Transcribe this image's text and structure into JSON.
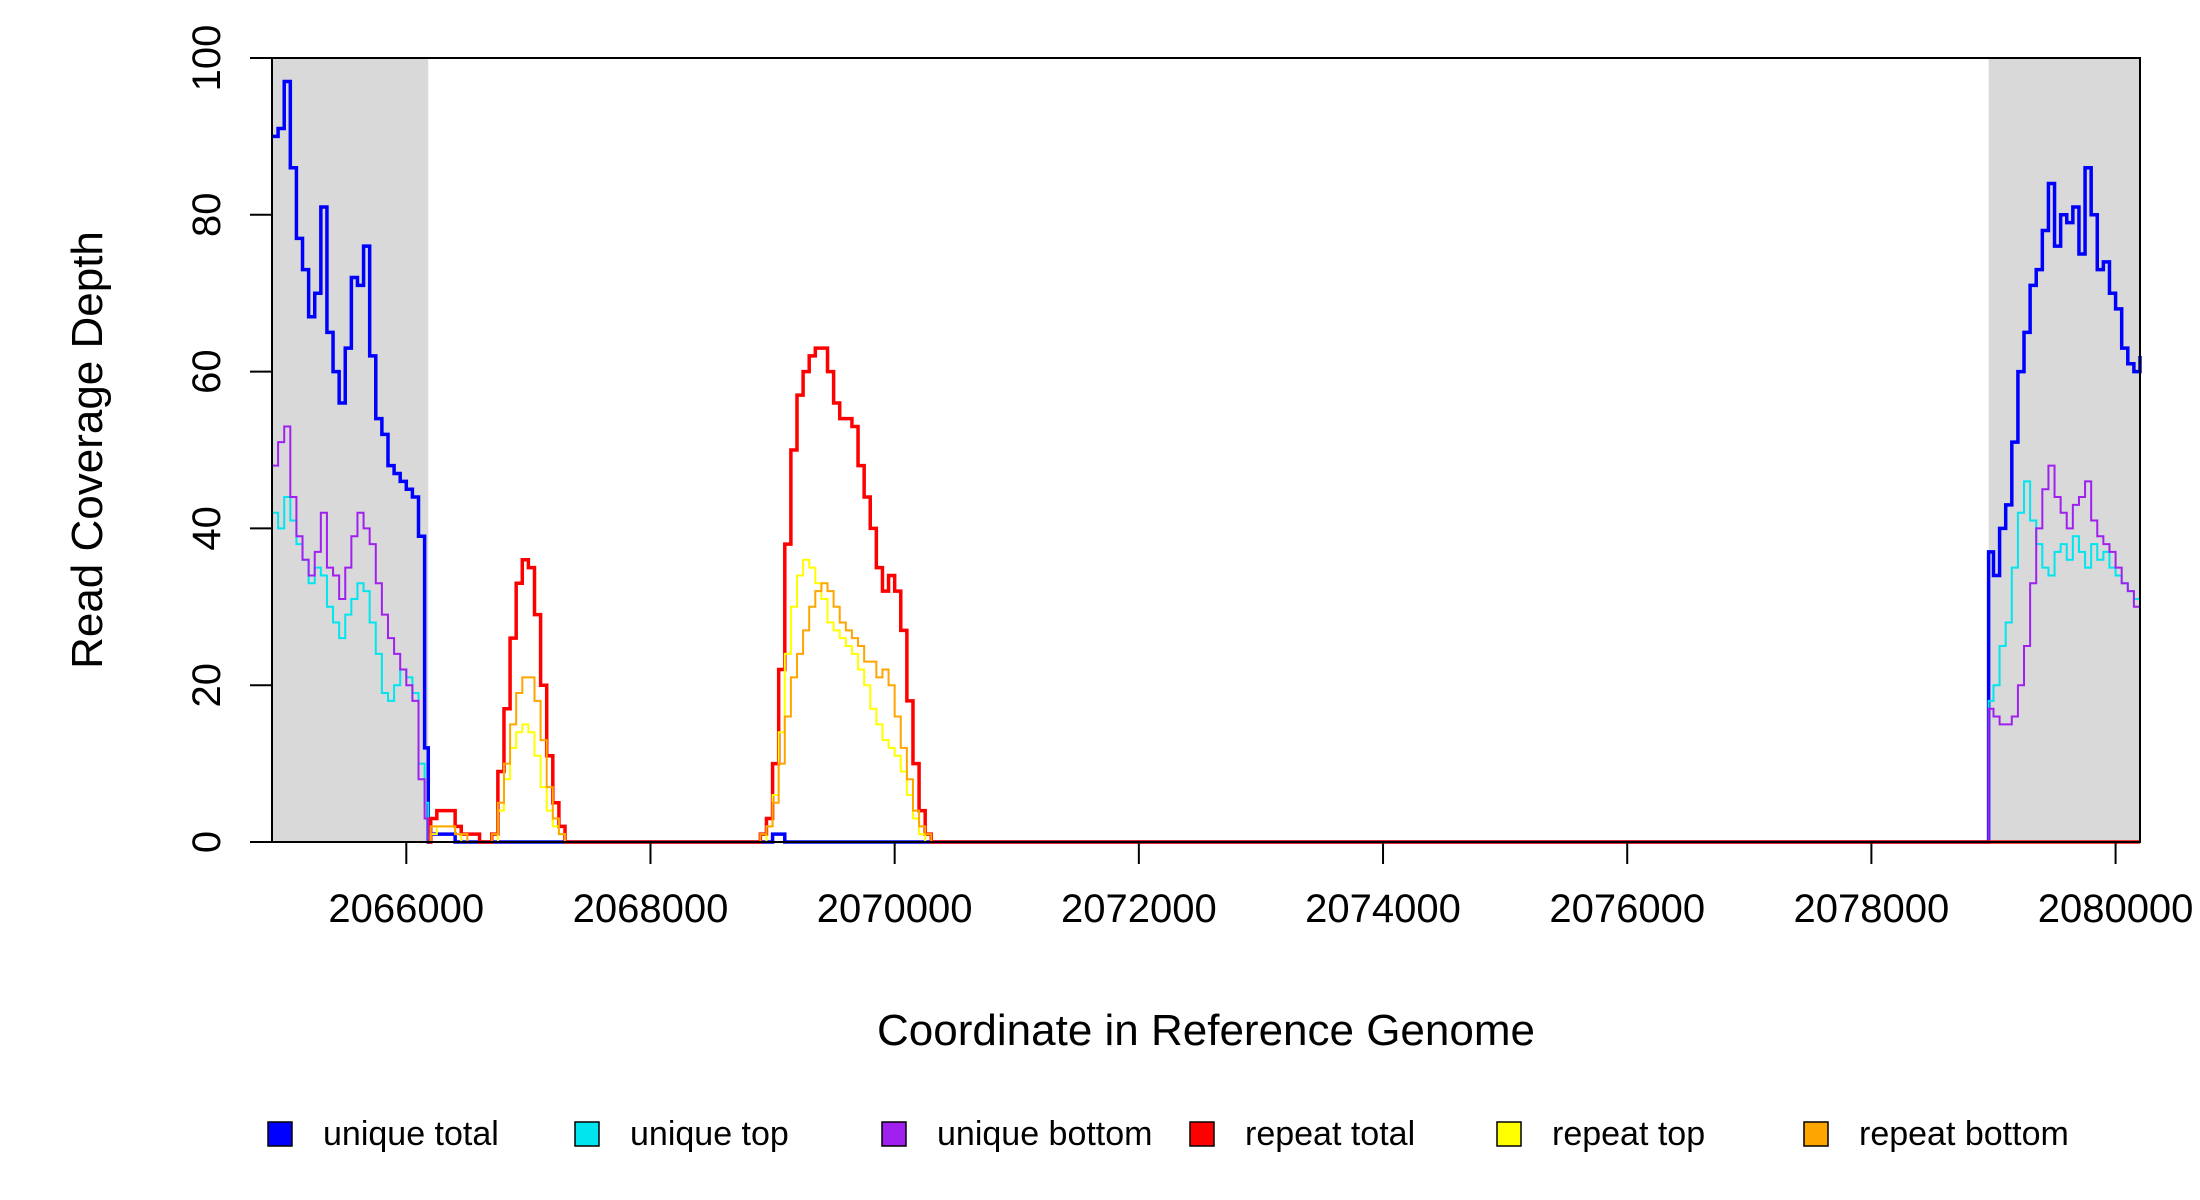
{
  "chart_data": {
    "type": "line",
    "xlabel": "Coordinate in Reference Genome",
    "ylabel": "Read Coverage Depth",
    "xlim": [
      2064900,
      2080200
    ],
    "ylim": [
      0,
      100
    ],
    "x_ticks": [
      2066000,
      2068000,
      2070000,
      2072000,
      2074000,
      2076000,
      2078000,
      2080000
    ],
    "x_tick_labels": [
      "2066000",
      "2068000",
      "2070000",
      "2072000",
      "2074000",
      "2076000",
      "2078000",
      "2080000"
    ],
    "y_ticks": [
      0,
      20,
      40,
      60,
      80,
      100
    ],
    "y_tick_labels": [
      "0",
      "20",
      "40",
      "60",
      "80",
      "100"
    ],
    "grid": false,
    "legend_placement": "bottom",
    "shaded_regions": [
      {
        "x0": 2064900,
        "x1": 2066180,
        "color": "#d9d9d9"
      },
      {
        "x0": 2078960,
        "x1": 2080200,
        "color": "#d9d9d9"
      }
    ],
    "series": [
      {
        "name": "unique total",
        "color": "#0000ff",
        "x": [
          2064900,
          2064950,
          2065000,
          2065050,
          2065100,
          2065150,
          2065200,
          2065250,
          2065300,
          2065350,
          2065400,
          2065450,
          2065500,
          2065550,
          2065600,
          2065650,
          2065700,
          2065750,
          2065800,
          2065850,
          2065900,
          2065950,
          2066000,
          2066050,
          2066100,
          2066150,
          2066180,
          2066200,
          2066300,
          2066400,
          2066500,
          2066600,
          2068900,
          2069000,
          2069100,
          2070000,
          2078900,
          2078960,
          2079000,
          2079050,
          2079100,
          2079150,
          2079200,
          2079250,
          2079300,
          2079350,
          2079400,
          2079450,
          2079500,
          2079550,
          2079600,
          2079650,
          2079700,
          2079750,
          2079800,
          2079850,
          2079900,
          2079950,
          2080000,
          2080050,
          2080100,
          2080150,
          2080200
        ],
        "y": [
          90,
          91,
          97,
          86,
          77,
          73,
          67,
          70,
          81,
          65,
          60,
          56,
          63,
          72,
          71,
          76,
          62,
          54,
          52,
          48,
          47,
          46,
          45,
          44,
          39,
          12,
          0,
          1,
          1,
          0,
          0,
          0,
          0,
          1,
          0,
          0,
          0,
          37,
          34,
          40,
          43,
          51,
          60,
          65,
          71,
          73,
          78,
          84,
          76,
          80,
          79,
          81,
          75,
          86,
          80,
          73,
          74,
          70,
          68,
          63,
          61,
          60,
          62
        ]
      },
      {
        "name": "unique top",
        "color": "#00e5ee",
        "x": [
          2064900,
          2064950,
          2065000,
          2065050,
          2065100,
          2065150,
          2065200,
          2065250,
          2065300,
          2065350,
          2065400,
          2065450,
          2065500,
          2065550,
          2065600,
          2065650,
          2065700,
          2065750,
          2065800,
          2065850,
          2065900,
          2065950,
          2066000,
          2066050,
          2066100,
          2066150,
          2066180,
          2066200,
          2078900,
          2078960,
          2079000,
          2079050,
          2079100,
          2079150,
          2079200,
          2079250,
          2079300,
          2079350,
          2079400,
          2079450,
          2079500,
          2079550,
          2079600,
          2079650,
          2079700,
          2079750,
          2079800,
          2079850,
          2079900,
          2079950,
          2080000,
          2080050,
          2080100,
          2080150,
          2080200
        ],
        "y": [
          42,
          40,
          44,
          41,
          38,
          36,
          33,
          35,
          34,
          30,
          28,
          26,
          29,
          31,
          33,
          32,
          28,
          24,
          19,
          18,
          20,
          22,
          21,
          19,
          10,
          5,
          0,
          0,
          0,
          18,
          20,
          25,
          28,
          35,
          42,
          46,
          41,
          38,
          35,
          34,
          37,
          38,
          36,
          39,
          37,
          35,
          38,
          36,
          37,
          35,
          34,
          33,
          32,
          31,
          30
        ]
      },
      {
        "name": "unique bottom",
        "color": "#a020f0",
        "x": [
          2064900,
          2064950,
          2065000,
          2065050,
          2065100,
          2065150,
          2065200,
          2065250,
          2065300,
          2065350,
          2065400,
          2065450,
          2065500,
          2065550,
          2065600,
          2065650,
          2065700,
          2065750,
          2065800,
          2065850,
          2065900,
          2065950,
          2066000,
          2066050,
          2066100,
          2066150,
          2066180,
          2066200,
          2078900,
          2078960,
          2079000,
          2079050,
          2079100,
          2079150,
          2079200,
          2079250,
          2079300,
          2079350,
          2079400,
          2079450,
          2079500,
          2079550,
          2079600,
          2079650,
          2079700,
          2079750,
          2079800,
          2079850,
          2079900,
          2079950,
          2080000,
          2080050,
          2080100,
          2080150,
          2080200
        ],
        "y": [
          48,
          51,
          53,
          44,
          39,
          36,
          34,
          37,
          42,
          35,
          34,
          31,
          35,
          39,
          42,
          40,
          38,
          33,
          29,
          26,
          24,
          22,
          20,
          18,
          8,
          3,
          0,
          0,
          0,
          17,
          16,
          15,
          15,
          16,
          20,
          25,
          33,
          40,
          45,
          48,
          44,
          42,
          40,
          43,
          44,
          46,
          41,
          39,
          38,
          37,
          35,
          33,
          32,
          30,
          29
        ]
      },
      {
        "name": "repeat total",
        "color": "#ff0000",
        "x": [
          2066180,
          2066200,
          2066250,
          2066300,
          2066350,
          2066400,
          2066450,
          2066500,
          2066600,
          2066700,
          2066750,
          2066800,
          2066850,
          2066900,
          2066950,
          2067000,
          2067050,
          2067100,
          2067150,
          2067200,
          2067250,
          2067300,
          2067350,
          2067400,
          2068800,
          2068850,
          2068900,
          2068950,
          2069000,
          2069050,
          2069100,
          2069150,
          2069200,
          2069250,
          2069300,
          2069350,
          2069400,
          2069450,
          2069500,
          2069550,
          2069600,
          2069650,
          2069700,
          2069750,
          2069800,
          2069850,
          2069900,
          2069950,
          2070000,
          2070050,
          2070100,
          2070150,
          2070200,
          2070250,
          2070300
        ],
        "y": [
          0,
          3,
          4,
          4,
          4,
          2,
          1,
          1,
          0,
          1,
          9,
          17,
          26,
          33,
          36,
          35,
          29,
          20,
          11,
          5,
          2,
          0,
          0,
          0,
          0,
          0,
          1,
          3,
          10,
          22,
          38,
          50,
          57,
          60,
          62,
          63,
          63,
          60,
          56,
          54,
          54,
          53,
          48,
          44,
          40,
          35,
          32,
          34,
          32,
          27,
          18,
          10,
          4,
          1,
          0
        ]
      },
      {
        "name": "repeat top",
        "color": "#ffff00",
        "x": [
          2066180,
          2066200,
          2066250,
          2066300,
          2066350,
          2066400,
          2066450,
          2066500,
          2066600,
          2066700,
          2066750,
          2066800,
          2066850,
          2066900,
          2066950,
          2067000,
          2067050,
          2067100,
          2067150,
          2067200,
          2067250,
          2067300,
          2067350,
          2067400,
          2068800,
          2068850,
          2068900,
          2068950,
          2069000,
          2069050,
          2069100,
          2069150,
          2069200,
          2069250,
          2069300,
          2069350,
          2069400,
          2069450,
          2069500,
          2069550,
          2069600,
          2069650,
          2069700,
          2069750,
          2069800,
          2069850,
          2069900,
          2069950,
          2070000,
          2070050,
          2070100,
          2070150,
          2070200,
          2070250,
          2070300
        ],
        "y": [
          0,
          1,
          2,
          2,
          2,
          1,
          0,
          0,
          0,
          0,
          4,
          8,
          12,
          14,
          15,
          14,
          11,
          7,
          4,
          2,
          1,
          0,
          0,
          0,
          0,
          0,
          0,
          2,
          6,
          14,
          24,
          30,
          34,
          36,
          35,
          33,
          31,
          28,
          27,
          26,
          25,
          24,
          22,
          20,
          17,
          15,
          13,
          12,
          11,
          9,
          6,
          3,
          1,
          0,
          0
        ]
      },
      {
        "name": "repeat bottom",
        "color": "#ffa500",
        "x": [
          2066180,
          2066200,
          2066250,
          2066300,
          2066350,
          2066400,
          2066450,
          2066500,
          2066600,
          2066700,
          2066750,
          2066800,
          2066850,
          2066900,
          2066950,
          2067000,
          2067050,
          2067100,
          2067150,
          2067200,
          2067250,
          2067300,
          2067350,
          2067400,
          2068800,
          2068850,
          2068900,
          2068950,
          2069000,
          2069050,
          2069100,
          2069150,
          2069200,
          2069250,
          2069300,
          2069350,
          2069400,
          2069450,
          2069500,
          2069550,
          2069600,
          2069650,
          2069700,
          2069750,
          2069800,
          2069850,
          2069900,
          2069950,
          2070000,
          2070050,
          2070100,
          2070150,
          2070200,
          2070250,
          2070300
        ],
        "y": [
          0,
          2,
          2,
          2,
          2,
          1,
          1,
          0,
          0,
          1,
          5,
          10,
          15,
          19,
          21,
          21,
          18,
          13,
          7,
          3,
          1,
          0,
          0,
          0,
          0,
          0,
          1,
          2,
          5,
          10,
          16,
          21,
          24,
          27,
          30,
          32,
          33,
          32,
          30,
          28,
          27,
          26,
          25,
          23,
          23,
          21,
          22,
          20,
          16,
          12,
          8,
          4,
          2,
          1,
          0
        ]
      }
    ]
  }
}
